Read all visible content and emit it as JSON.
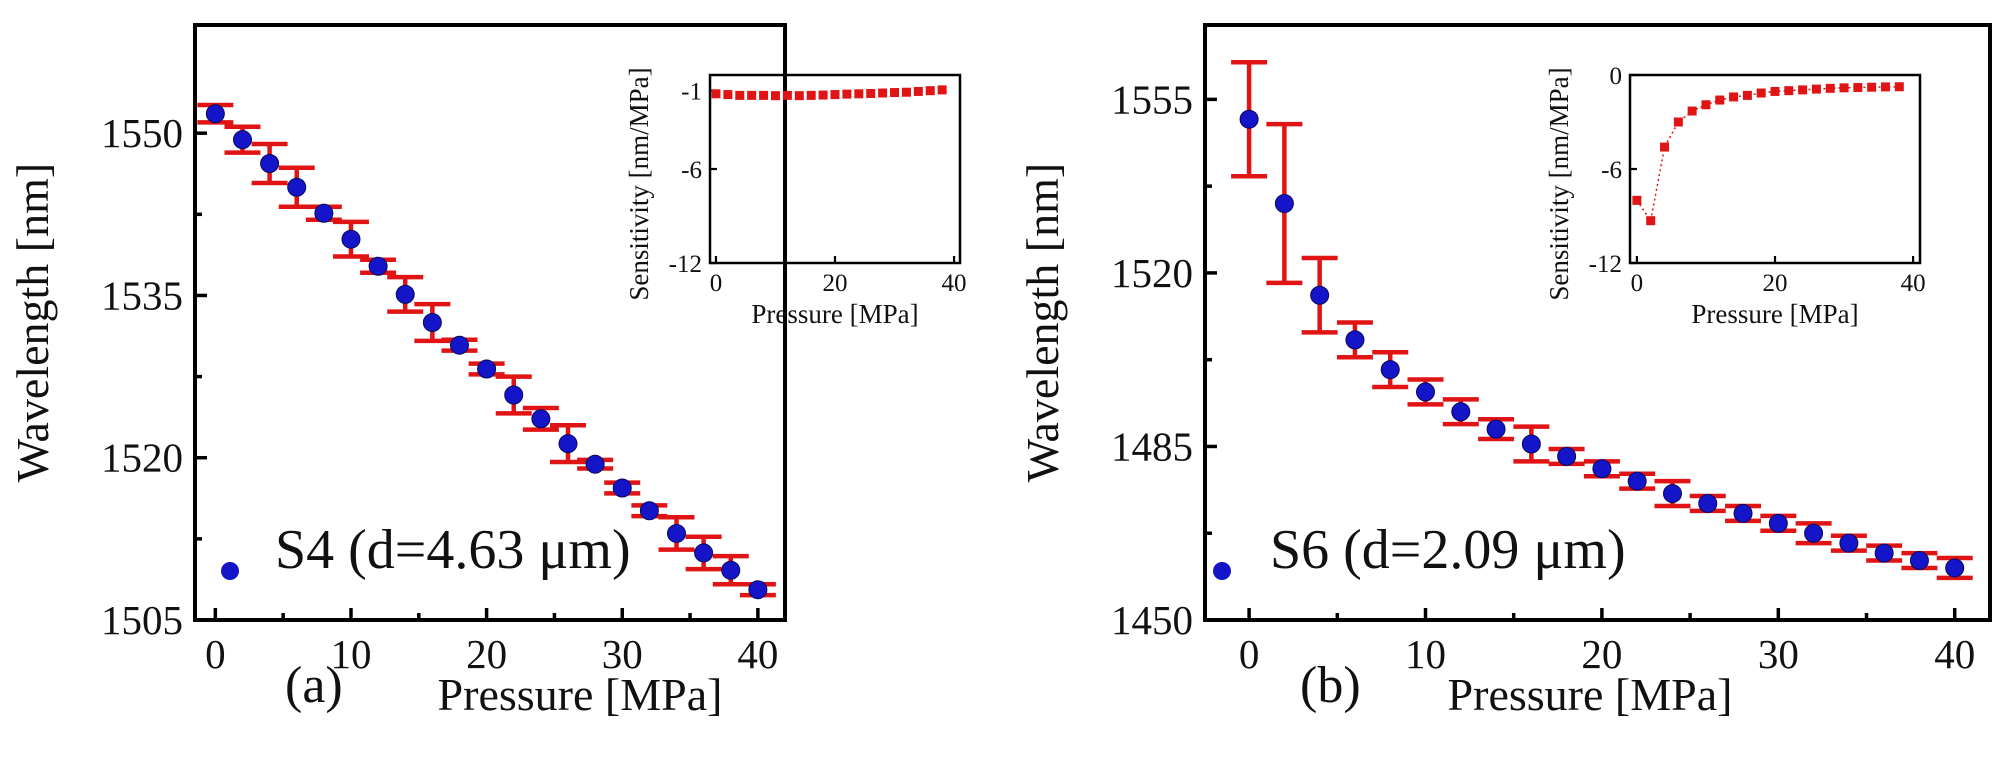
{
  "chart_data": [
    {
      "type": "scatter",
      "panel_label": "(a)",
      "title": "",
      "xlabel": "Pressure [MPa]",
      "ylabel": "Wavelength [nm]",
      "xlim": [
        -1.5,
        42
      ],
      "ylim": [
        1505,
        1560
      ],
      "xticks": [
        0,
        10,
        20,
        30,
        40
      ],
      "yticks": [
        1505,
        1520,
        1535,
        1550
      ],
      "legend": {
        "label": "S4 (d=4.63 μm)",
        "position": "bottom-left"
      },
      "colors": {
        "marker": "#1414c8",
        "error_bar": "#e01414"
      },
      "series": [
        {
          "name": "S4 (d=4.63 μm)",
          "x": [
            0,
            2,
            4,
            6,
            8,
            10,
            12,
            14,
            16,
            18,
            20,
            22,
            24,
            26,
            28,
            30,
            32,
            34,
            36,
            38,
            40
          ],
          "y": [
            1551.8,
            1549.4,
            1547.2,
            1545.0,
            1542.6,
            1540.2,
            1537.7,
            1535.1,
            1532.5,
            1530.4,
            1528.2,
            1525.8,
            1523.6,
            1521.3,
            1519.4,
            1517.2,
            1515.1,
            1513.0,
            1511.2,
            1509.6,
            1507.8
          ],
          "err": [
            0.8,
            1.2,
            1.8,
            1.8,
            0.6,
            1.6,
            0.6,
            1.6,
            1.7,
            0.5,
            0.5,
            1.7,
            1.0,
            1.7,
            0.4,
            0.5,
            0.5,
            1.5,
            1.5,
            1.3,
            0.5
          ]
        }
      ],
      "inset": {
        "type": "scatter",
        "xlabel": "Pressure [MPa]",
        "ylabel": "Sensitivity [nm/MPa]",
        "xlim": [
          -1,
          41
        ],
        "ylim": [
          -12,
          0
        ],
        "xticks": [
          0,
          20,
          40
        ],
        "yticks": [
          -12,
          -6,
          -1
        ],
        "marker_color": "#e01414",
        "x": [
          0,
          2,
          4,
          6,
          8,
          10,
          12,
          14,
          16,
          18,
          20,
          22,
          24,
          26,
          28,
          30,
          32,
          34,
          36,
          38
        ],
        "y": [
          -1.2,
          -1.25,
          -1.3,
          -1.3,
          -1.3,
          -1.32,
          -1.3,
          -1.32,
          -1.3,
          -1.28,
          -1.25,
          -1.22,
          -1.2,
          -1.18,
          -1.15,
          -1.12,
          -1.1,
          -1.05,
          -1.0,
          -0.95
        ]
      }
    },
    {
      "type": "scatter",
      "panel_label": "(b)",
      "title": "",
      "xlabel": "Pressure [MPa]",
      "ylabel": "Wavelength [nm]",
      "xlim": [
        -2.5,
        42
      ],
      "ylim": [
        1450,
        1570
      ],
      "xticks": [
        0,
        10,
        20,
        30,
        40
      ],
      "yticks": [
        1450,
        1485,
        1520,
        1555
      ],
      "legend": {
        "label": "S6 (d=2.09 μm)",
        "position": "bottom-left"
      },
      "colors": {
        "marker": "#1414c8",
        "error_bar": "#e01414"
      },
      "series": [
        {
          "name": "S6 (d=2.09 μm)",
          "x": [
            0,
            2,
            4,
            6,
            8,
            10,
            12,
            14,
            16,
            18,
            20,
            22,
            24,
            26,
            28,
            30,
            32,
            34,
            36,
            38,
            40
          ],
          "y": [
            1551.0,
            1534.0,
            1515.5,
            1506.5,
            1500.5,
            1496.0,
            1492.0,
            1488.5,
            1485.5,
            1483.0,
            1480.5,
            1478.0,
            1475.5,
            1473.5,
            1471.5,
            1469.5,
            1467.5,
            1465.5,
            1463.5,
            1462.0,
            1460.5
          ],
          "err": [
            11.5,
            16.0,
            7.5,
            3.5,
            3.5,
            2.5,
            2.5,
            2.0,
            3.5,
            1.5,
            1.5,
            1.5,
            2.5,
            1.5,
            1.5,
            1.5,
            2.0,
            1.5,
            1.5,
            1.5,
            2.0
          ]
        }
      ],
      "inset": {
        "type": "line",
        "xlabel": "Pressure [MPa]",
        "ylabel": "Sensitivity [nm/MPa]",
        "xlim": [
          -1,
          41
        ],
        "ylim": [
          -12,
          0
        ],
        "xticks": [
          0,
          20,
          40
        ],
        "yticks": [
          -12,
          -6,
          0
        ],
        "marker_color": "#e01414",
        "x": [
          0,
          2,
          4,
          6,
          8,
          10,
          12,
          14,
          16,
          18,
          20,
          22,
          24,
          26,
          28,
          30,
          32,
          34,
          36,
          38
        ],
        "y": [
          -8.0,
          -9.3,
          -4.6,
          -3.0,
          -2.3,
          -1.9,
          -1.6,
          -1.4,
          -1.3,
          -1.15,
          -1.05,
          -1.0,
          -0.95,
          -0.9,
          -0.85,
          -0.82,
          -0.8,
          -0.78,
          -0.76,
          -0.75
        ]
      }
    }
  ]
}
